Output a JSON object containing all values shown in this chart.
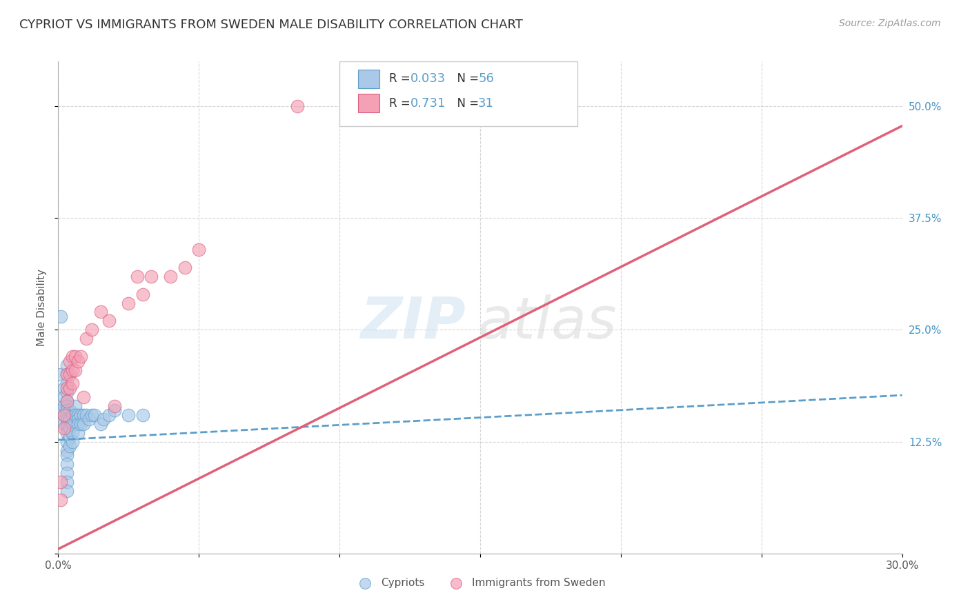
{
  "title": "CYPRIOT VS IMMIGRANTS FROM SWEDEN MALE DISABILITY CORRELATION CHART",
  "source": "Source: ZipAtlas.com",
  "ylabel": "Male Disability",
  "xlim": [
    0.0,
    0.3
  ],
  "ylim": [
    0.0,
    0.55
  ],
  "xtick_positions": [
    0.0,
    0.05,
    0.1,
    0.15,
    0.2,
    0.25,
    0.3
  ],
  "xtick_labels": [
    "0.0%",
    "",
    "",
    "",
    "",
    "",
    "30.0%"
  ],
  "ytick_positions": [
    0.0,
    0.125,
    0.25,
    0.375,
    0.5
  ],
  "ytick_labels": [
    "",
    "12.5%",
    "25.0%",
    "37.5%",
    "50.0%"
  ],
  "grid_color": "#cccccc",
  "background_color": "#ffffff",
  "color_cypriot_fill": "#aac8e8",
  "color_cypriot_edge": "#5a9ec9",
  "color_sweden_fill": "#f4a0b5",
  "color_sweden_edge": "#d96080",
  "color_line_cypriot": "#5a9ec9",
  "color_line_sweden": "#e0607a",
  "cypriot_x": [
    0.001,
    0.001,
    0.001,
    0.002,
    0.002,
    0.002,
    0.002,
    0.002,
    0.003,
    0.003,
    0.003,
    0.003,
    0.003,
    0.003,
    0.003,
    0.003,
    0.003,
    0.003,
    0.003,
    0.003,
    0.003,
    0.003,
    0.003,
    0.003,
    0.003,
    0.003,
    0.003,
    0.004,
    0.004,
    0.004,
    0.004,
    0.004,
    0.005,
    0.005,
    0.005,
    0.005,
    0.006,
    0.006,
    0.007,
    0.007,
    0.007,
    0.007,
    0.008,
    0.008,
    0.009,
    0.009,
    0.01,
    0.011,
    0.012,
    0.013,
    0.015,
    0.016,
    0.018,
    0.02,
    0.025,
    0.03
  ],
  "cypriot_y": [
    0.265,
    0.2,
    0.16,
    0.185,
    0.175,
    0.165,
    0.155,
    0.145,
    0.21,
    0.2,
    0.19,
    0.18,
    0.17,
    0.165,
    0.16,
    0.155,
    0.15,
    0.145,
    0.14,
    0.135,
    0.125,
    0.115,
    0.11,
    0.1,
    0.09,
    0.08,
    0.07,
    0.16,
    0.15,
    0.14,
    0.13,
    0.12,
    0.155,
    0.145,
    0.135,
    0.125,
    0.165,
    0.155,
    0.155,
    0.15,
    0.145,
    0.135,
    0.155,
    0.145,
    0.155,
    0.145,
    0.155,
    0.15,
    0.155,
    0.155,
    0.145,
    0.15,
    0.155,
    0.16,
    0.155,
    0.155
  ],
  "sweden_x": [
    0.001,
    0.001,
    0.002,
    0.002,
    0.003,
    0.003,
    0.003,
    0.004,
    0.004,
    0.004,
    0.005,
    0.005,
    0.005,
    0.006,
    0.006,
    0.007,
    0.008,
    0.009,
    0.01,
    0.012,
    0.015,
    0.018,
    0.02,
    0.025,
    0.028,
    0.03,
    0.033,
    0.04,
    0.045,
    0.05,
    0.085
  ],
  "sweden_y": [
    0.08,
    0.06,
    0.155,
    0.14,
    0.2,
    0.185,
    0.17,
    0.215,
    0.2,
    0.185,
    0.22,
    0.205,
    0.19,
    0.22,
    0.205,
    0.215,
    0.22,
    0.175,
    0.24,
    0.25,
    0.27,
    0.26,
    0.165,
    0.28,
    0.31,
    0.29,
    0.31,
    0.31,
    0.32,
    0.34,
    0.5
  ]
}
